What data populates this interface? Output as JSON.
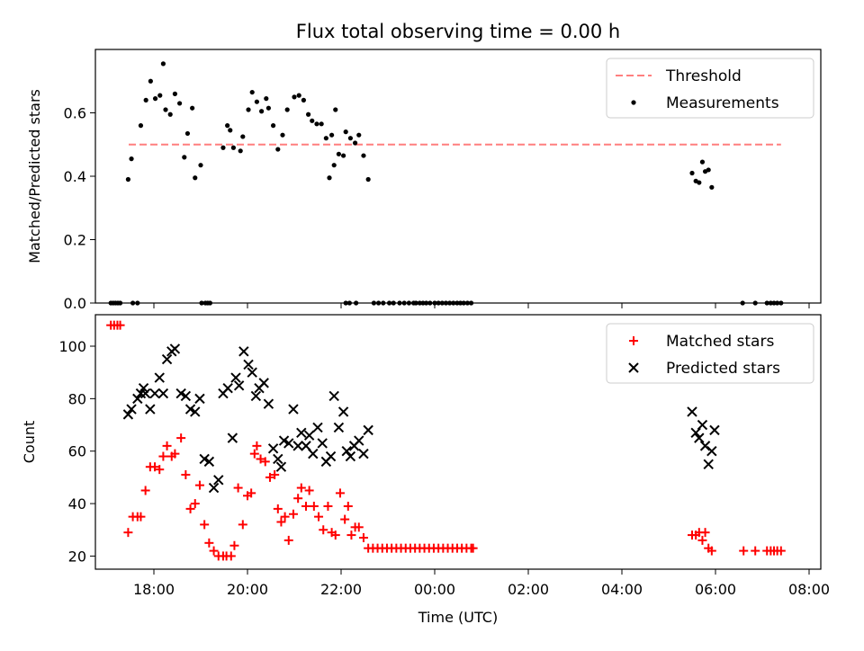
{
  "title": "Flux total observing time = 0.00 h",
  "chart_data": [
    {
      "type": "scatter",
      "panel": "top",
      "ylabel": "Matched/Predicted stars",
      "xlabel": "",
      "ylim": [
        0,
        0.8
      ],
      "xlim": [
        -7.25,
        8.25
      ],
      "y_ticks": [
        0.0,
        0.2,
        0.4,
        0.6
      ],
      "y_tick_labels": [
        "0.0",
        "0.2",
        "0.4",
        "0.6"
      ],
      "legend_position": "top-right",
      "threshold": {
        "name": "Threshold",
        "value": 0.5,
        "x_range": [
          -7.25,
          7.4
        ],
        "color": "#ff7f7f"
      },
      "series": [
        {
          "name": "Measurements",
          "color": "#000000",
          "x": [
            -6.92,
            -6.87,
            -6.82,
            -6.77,
            -6.72,
            -6.55,
            -6.48,
            -6.45,
            -6.35,
            -6.28,
            -6.17,
            -6.07,
            -5.97,
            -5.87,
            -5.8,
            -5.75,
            -5.65,
            -5.55,
            -5.45,
            -5.35,
            -5.28,
            -5.18,
            -5.12,
            -5.0,
            -4.98,
            -4.9,
            -4.85,
            -4.8,
            -4.52,
            -4.43,
            -4.37,
            -4.3,
            -4.15,
            -4.1,
            -3.98,
            -3.9,
            -3.8,
            -3.7,
            -3.6,
            -3.55,
            -3.45,
            -3.35,
            -3.25,
            -3.15,
            -3.0,
            -2.9,
            -2.8,
            -2.7,
            -2.62,
            -2.52,
            -2.42,
            -2.32,
            -2.2,
            -2.12,
            -2.05,
            -1.95,
            -1.9,
            -1.8,
            -1.7,
            -1.62,
            -1.52,
            -1.42,
            -1.3,
            -1.2,
            -1.1,
            -0.97,
            -0.88,
            -2.25,
            -2.15,
            -1.9,
            -1.82,
            -1.68,
            -0.4,
            -0.32,
            -0.25,
            -0.18,
            -0.1,
            0.0,
            0.08,
            0.16,
            0.24,
            0.32,
            0.4,
            0.48,
            0.55,
            0.62,
            0.7,
            0.78,
            5.5,
            5.58,
            5.65,
            5.72,
            5.78,
            5.85,
            5.92,
            6.58,
            6.85,
            7.1,
            7.18,
            7.25,
            7.32,
            7.4,
            -0.75,
            -0.65,
            -0.55,
            -0.45
          ],
          "y": [
            0.0,
            0.0,
            0.0,
            0.0,
            0.0,
            0.39,
            0.455,
            0.0,
            0.0,
            0.56,
            0.64,
            0.7,
            0.645,
            0.655,
            0.755,
            0.61,
            0.595,
            0.66,
            0.63,
            0.46,
            0.535,
            0.615,
            0.395,
            0.435,
            0.0,
            0.0,
            0.0,
            0.0,
            0.49,
            0.56,
            0.545,
            0.49,
            0.48,
            0.525,
            0.61,
            0.665,
            0.635,
            0.605,
            0.645,
            0.615,
            0.56,
            0.485,
            0.53,
            0.61,
            0.65,
            0.655,
            0.64,
            0.595,
            0.575,
            0.565,
            0.565,
            0.52,
            0.53,
            0.61,
            0.47,
            0.465,
            0.54,
            0.52,
            0.505,
            0.53,
            0.465,
            0.39,
            0.0,
            0.0,
            0.0,
            0.0,
            0.0,
            0.395,
            0.435,
            0.0,
            0.0,
            0.0,
            0.0,
            0.0,
            0.0,
            0.0,
            0.0,
            0.0,
            0.0,
            0.0,
            0.0,
            0.0,
            0.0,
            0.0,
            0.0,
            0.0,
            0.0,
            0.0,
            0.41,
            0.385,
            0.38,
            0.445,
            0.415,
            0.42,
            0.365,
            0.0,
            0.0,
            0.0,
            0.0,
            0.0,
            0.0,
            0.0,
            0.0,
            0.0,
            0.0,
            0.0
          ]
        }
      ]
    },
    {
      "type": "scatter",
      "panel": "bottom",
      "ylabel": "Count",
      "xlabel": "Time (UTC)",
      "ylim": [
        15,
        112
      ],
      "xlim": [
        -7.25,
        8.25
      ],
      "y_ticks": [
        20,
        40,
        60,
        80,
        100
      ],
      "y_tick_labels": [
        "20",
        "40",
        "60",
        "80",
        "100"
      ],
      "x_ticks": [
        -6,
        -4,
        -2,
        0,
        2,
        4,
        6,
        8
      ],
      "x_tick_labels": [
        "18:00",
        "20:00",
        "22:00",
        "00:00",
        "02:00",
        "04:00",
        "06:00",
        "08:00"
      ],
      "legend_position": "top-right",
      "series": [
        {
          "name": "Matched stars",
          "marker": "plus",
          "color": "#ff0000",
          "x": [
            -6.92,
            -6.85,
            -6.78,
            -6.72,
            -6.55,
            -6.45,
            -6.35,
            -6.28,
            -6.18,
            -6.08,
            -5.98,
            -5.88,
            -5.8,
            -5.72,
            -5.62,
            -5.55,
            -5.42,
            -5.32,
            -5.22,
            -5.12,
            -5.02,
            -4.92,
            -4.82,
            -4.72,
            -4.62,
            -4.52,
            -4.45,
            -4.35,
            -4.28,
            -4.2,
            -4.1,
            -4.0,
            -3.92,
            -3.85,
            -3.8,
            -3.72,
            -3.62,
            -3.52,
            -3.42,
            -3.35,
            -3.28,
            -3.2,
            -3.12,
            -3.02,
            -2.92,
            -2.85,
            -2.75,
            -2.68,
            -2.58,
            -2.48,
            -2.38,
            -2.28,
            -2.2,
            -2.12,
            -2.02,
            -1.92,
            -1.85,
            -1.78,
            -1.7,
            -1.62,
            -1.52,
            -1.42,
            -1.32,
            -1.22,
            -1.12,
            -1.02,
            -0.92,
            -0.82,
            -0.72,
            -0.62,
            -0.52,
            -0.42,
            -0.32,
            -0.22,
            -0.12,
            -0.02,
            0.08,
            0.18,
            0.28,
            0.38,
            0.48,
            0.58,
            0.68,
            0.78,
            0.82,
            5.5,
            5.58,
            5.65,
            5.72,
            5.78,
            5.85,
            5.92,
            6.6,
            6.85,
            7.1,
            7.18,
            7.25,
            7.32,
            7.4
          ],
          "y": [
            108,
            108,
            108,
            108,
            29,
            35,
            35,
            35,
            45,
            54,
            54,
            53,
            58,
            62,
            58,
            59,
            65,
            51,
            38,
            40,
            47,
            32,
            25,
            22,
            20,
            20,
            20,
            20,
            24,
            46,
            32,
            43,
            44,
            59,
            62,
            57,
            56,
            50,
            51,
            38,
            33,
            35,
            26,
            36,
            42,
            46,
            39,
            45,
            39,
            35,
            30,
            39,
            29,
            28,
            44,
            34,
            39,
            28,
            31,
            31,
            27,
            23,
            23,
            23,
            23,
            23,
            23,
            23,
            23,
            23,
            23,
            23,
            23,
            23,
            23,
            23,
            23,
            23,
            23,
            23,
            23,
            23,
            23,
            23,
            23,
            28,
            28,
            29,
            26,
            29,
            23,
            22,
            22,
            22,
            22,
            22,
            22,
            22,
            22
          ]
        },
        {
          "name": "Predicted stars",
          "marker": "x",
          "color": "#000000",
          "x": [
            -6.55,
            -6.48,
            -6.35,
            -6.28,
            -6.22,
            -6.18,
            -6.08,
            -5.98,
            -5.88,
            -5.8,
            -5.72,
            -5.62,
            -5.55,
            -5.42,
            -5.32,
            -5.22,
            -5.12,
            -5.02,
            -4.92,
            -4.82,
            -4.72,
            -4.62,
            -4.52,
            -4.42,
            -4.32,
            -4.25,
            -4.18,
            -4.08,
            -3.98,
            -3.9,
            -3.82,
            -3.75,
            -3.65,
            -3.55,
            -3.45,
            -3.35,
            -3.28,
            -3.22,
            -3.12,
            -3.02,
            -2.92,
            -2.85,
            -2.75,
            -2.68,
            -2.6,
            -2.5,
            -2.4,
            -2.32,
            -2.22,
            -2.15,
            -2.05,
            -1.95,
            -1.88,
            -1.8,
            -1.72,
            -1.62,
            -1.52,
            -1.42,
            5.5,
            5.58,
            5.65,
            5.72,
            5.78,
            5.85,
            5.92,
            5.98
          ],
          "y": [
            74,
            76,
            80,
            82,
            84,
            82,
            76,
            82,
            88,
            82,
            95,
            98,
            99,
            82,
            81,
            76,
            75,
            80,
            57,
            56,
            46,
            49,
            82,
            84,
            65,
            88,
            85,
            98,
            93,
            90,
            81,
            84,
            86,
            78,
            61,
            57,
            54,
            64,
            63,
            76,
            62,
            67,
            62,
            66,
            59,
            69,
            63,
            56,
            58,
            81,
            69,
            75,
            60,
            58,
            62,
            64,
            59,
            68,
            75,
            67,
            65,
            70,
            62,
            55,
            60,
            68
          ]
        }
      ]
    }
  ]
}
